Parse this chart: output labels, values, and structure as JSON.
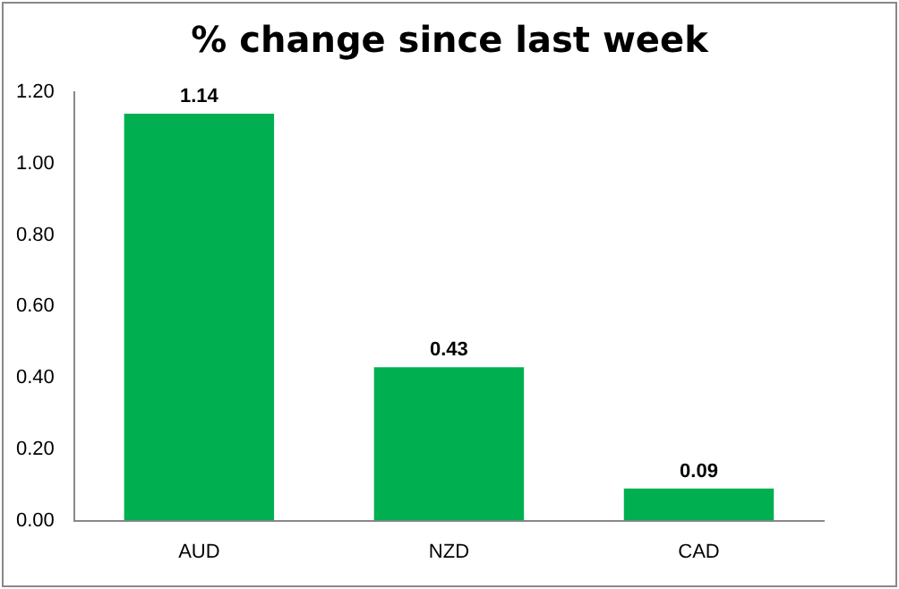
{
  "chart_data": {
    "type": "bar",
    "title": "% change since last week",
    "categories": [
      "AUD",
      "NZD",
      "CAD"
    ],
    "values": [
      1.14,
      0.43,
      0.09
    ],
    "color": "#00b050",
    "ylim": [
      0,
      1.2
    ],
    "yticks": [
      {
        "value": 0,
        "label": "0.00"
      },
      {
        "value": 0.2,
        "label": "0.20"
      },
      {
        "value": 0.4,
        "label": "0.40"
      },
      {
        "value": 0.6,
        "label": "0.60"
      },
      {
        "value": 0.8,
        "label": "0.80"
      },
      {
        "value": 1.0,
        "label": "1.00"
      },
      {
        "value": 1.2,
        "label": "1.20"
      }
    ],
    "grid": false,
    "legend": false,
    "data_labels": true
  }
}
